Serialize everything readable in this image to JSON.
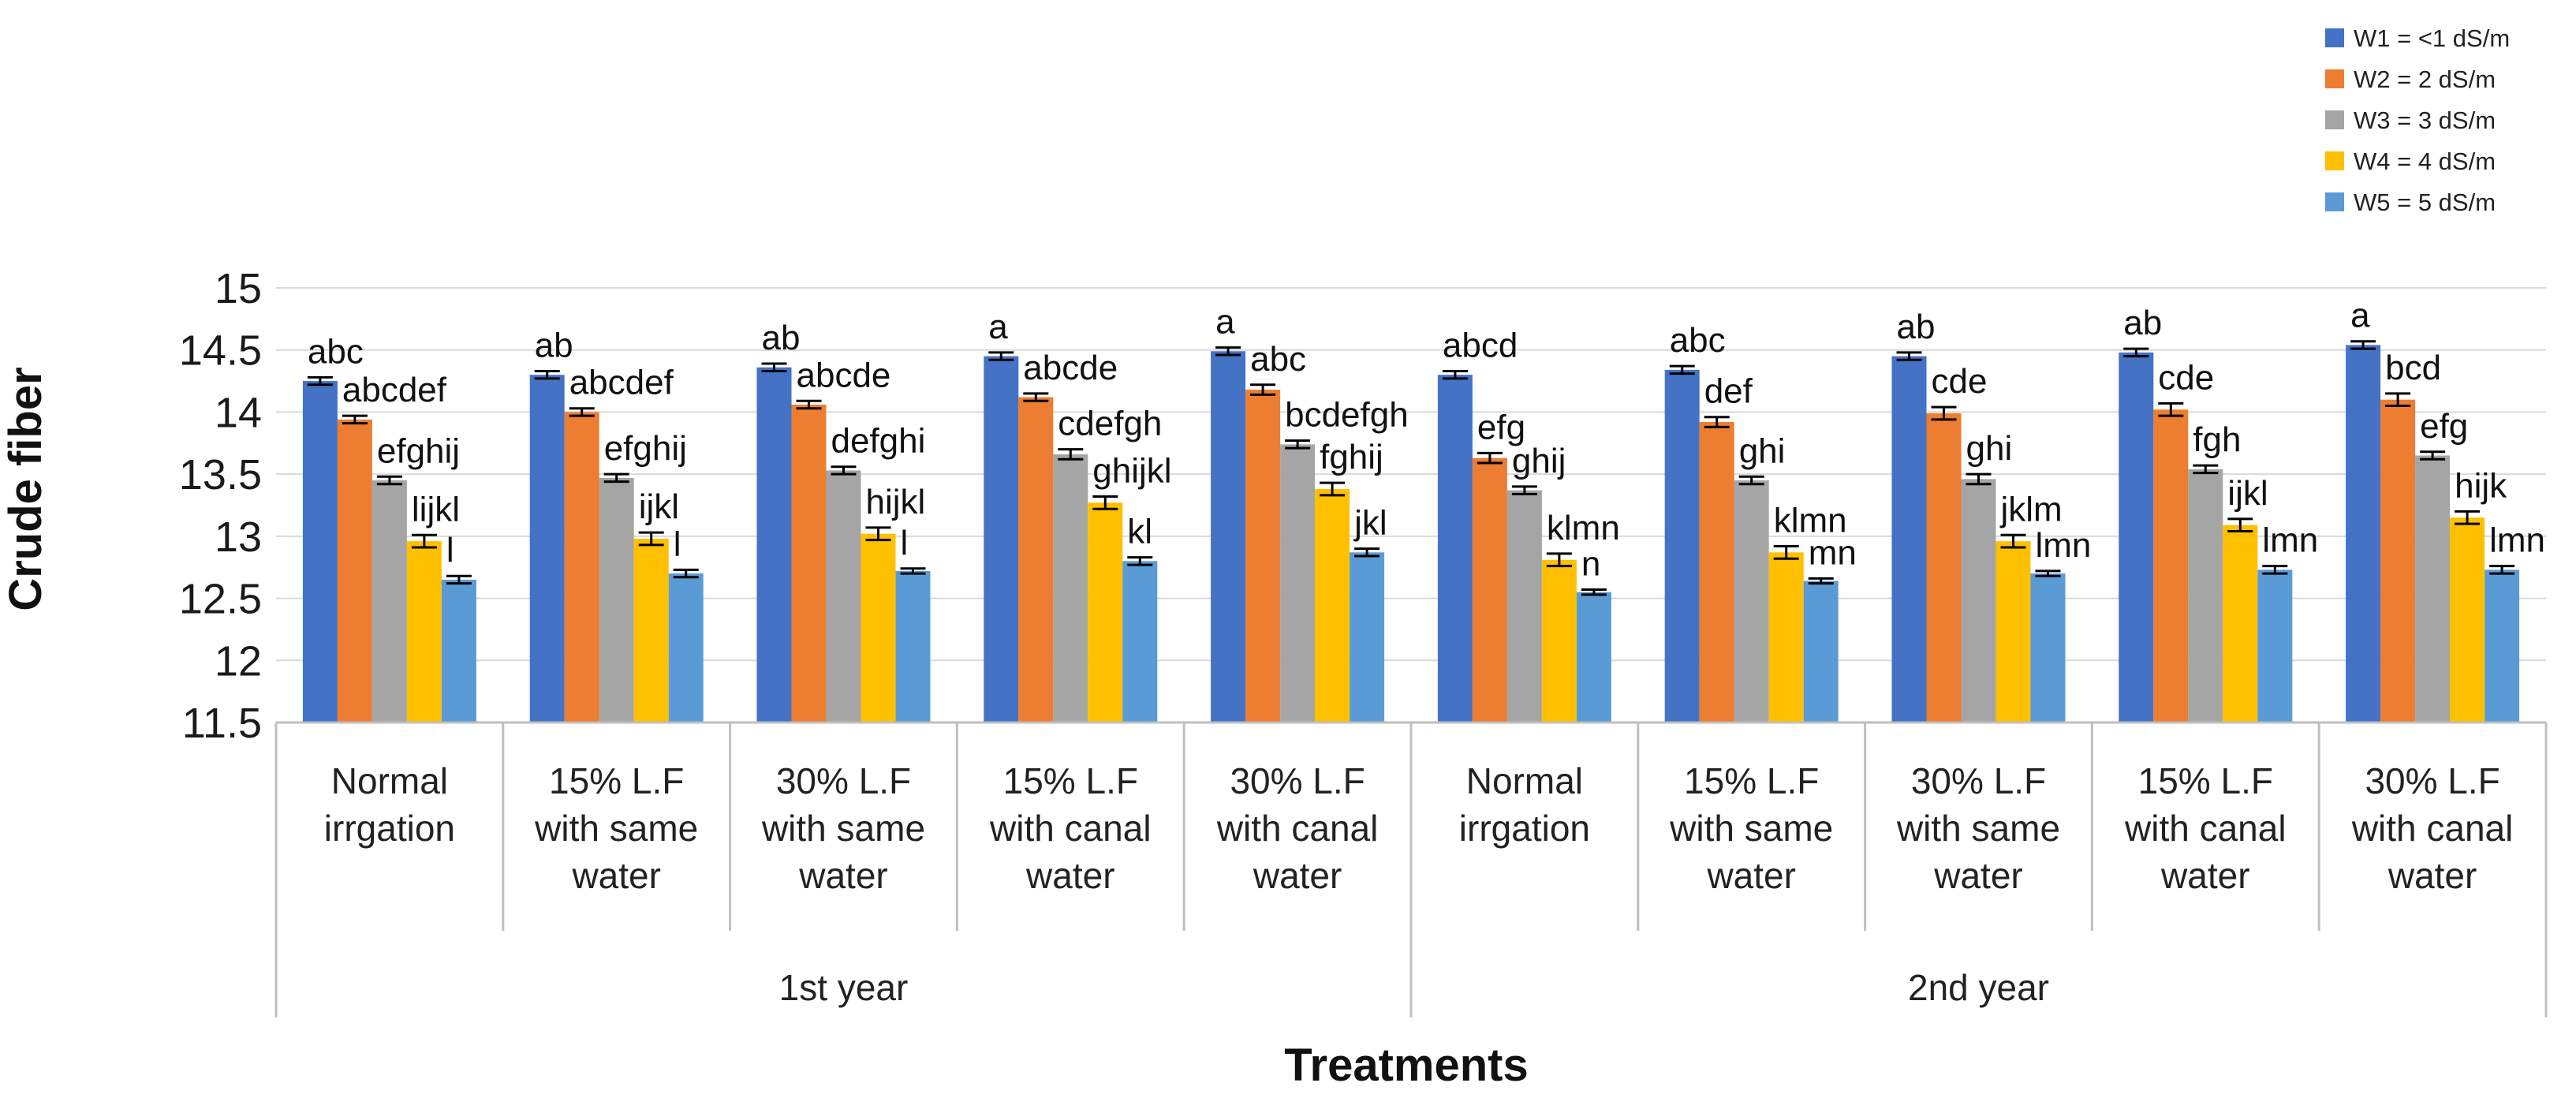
{
  "chart_data": {
    "type": "bar",
    "title": "",
    "xlabel": "Treatments",
    "ylabel": "Crude fiber",
    "ylim": [
      11.5,
      15
    ],
    "yticks": [
      "11.5",
      "12",
      "12.5",
      "13",
      "13.5",
      "14",
      "14.5",
      "15"
    ],
    "legend_position": "top-right",
    "groups": [
      {
        "label": "1st year",
        "categories": [
          [
            "Normal",
            "irrgation"
          ],
          [
            "15% L.F",
            "with same",
            "water"
          ],
          [
            "30% L.F",
            "with same",
            "water"
          ],
          [
            "15% L.F",
            "with canal",
            "water"
          ],
          [
            "30% L.F",
            "with canal",
            "water"
          ]
        ]
      },
      {
        "label": "2nd year",
        "categories": [
          [
            "Normal",
            "irrgation"
          ],
          [
            "15% L.F",
            "with same",
            "water"
          ],
          [
            "30% L.F",
            "with same",
            "water"
          ],
          [
            "15% L.F",
            "with canal",
            "water"
          ],
          [
            "30% L.F",
            "with canal",
            "water"
          ]
        ]
      }
    ],
    "series": [
      {
        "name": "W1 = <1 dS/m",
        "color": "#4472C4",
        "values": [
          14.25,
          14.3,
          14.36,
          14.45,
          14.49,
          14.3,
          14.34,
          14.45,
          14.48,
          14.54
        ],
        "errors": [
          0.03,
          0.03,
          0.03,
          0.03,
          0.03,
          0.03,
          0.03,
          0.03,
          0.03,
          0.03
        ],
        "labels": [
          "abc",
          "ab",
          "ab",
          "a",
          "a",
          "abcd",
          "abc",
          "ab",
          "ab",
          "a"
        ]
      },
      {
        "name": "W2 = 2 dS/m",
        "color": "#ED7D31",
        "values": [
          13.94,
          14.0,
          14.06,
          14.12,
          14.18,
          13.63,
          13.92,
          13.99,
          14.02,
          14.1
        ],
        "errors": [
          0.03,
          0.03,
          0.03,
          0.03,
          0.04,
          0.04,
          0.04,
          0.05,
          0.05,
          0.05
        ],
        "labels": [
          "abcdef",
          "abcdef",
          "abcde",
          "abcde",
          "abc",
          "efg",
          "def",
          "cde",
          "cde",
          "bcd"
        ]
      },
      {
        "name": "W3 = 3 dS/m",
        "color": "#A5A5A5",
        "values": [
          13.45,
          13.47,
          13.53,
          13.66,
          13.74,
          13.37,
          13.45,
          13.46,
          13.54,
          13.65
        ],
        "errors": [
          0.03,
          0.03,
          0.03,
          0.04,
          0.03,
          0.03,
          0.03,
          0.04,
          0.03,
          0.03
        ],
        "labels": [
          "efghij",
          "efghij",
          "defghi",
          "cdefgh",
          "bcdefgh",
          "ghij",
          "ghi",
          "ghi",
          "fgh",
          "efg"
        ]
      },
      {
        "name": "W4 = 4 dS/m",
        "color": "#FFC000",
        "values": [
          12.96,
          12.98,
          13.02,
          13.27,
          13.38,
          12.81,
          12.87,
          12.96,
          13.09,
          13.15
        ],
        "errors": [
          0.05,
          0.05,
          0.05,
          0.05,
          0.05,
          0.05,
          0.05,
          0.05,
          0.05,
          0.05
        ],
        "labels": [
          "lijkl",
          "ijkl",
          "hijkl",
          "ghijkl",
          "fghij",
          "klmn",
          "klmn",
          "jklm",
          "ijkl",
          "hijk"
        ]
      },
      {
        "name": "W5 = 5 dS/m",
        "color": "#5B9BD5",
        "values": [
          12.65,
          12.7,
          12.72,
          12.8,
          12.87,
          12.55,
          12.64,
          12.7,
          12.73,
          12.73
        ],
        "errors": [
          0.03,
          0.03,
          0.02,
          0.03,
          0.03,
          0.02,
          0.02,
          0.02,
          0.03,
          0.03
        ],
        "labels": [
          "l",
          "l",
          "l",
          "kl",
          "jkl",
          "n",
          "mn",
          "lmn",
          "lmn",
          "lmn"
        ]
      }
    ]
  }
}
